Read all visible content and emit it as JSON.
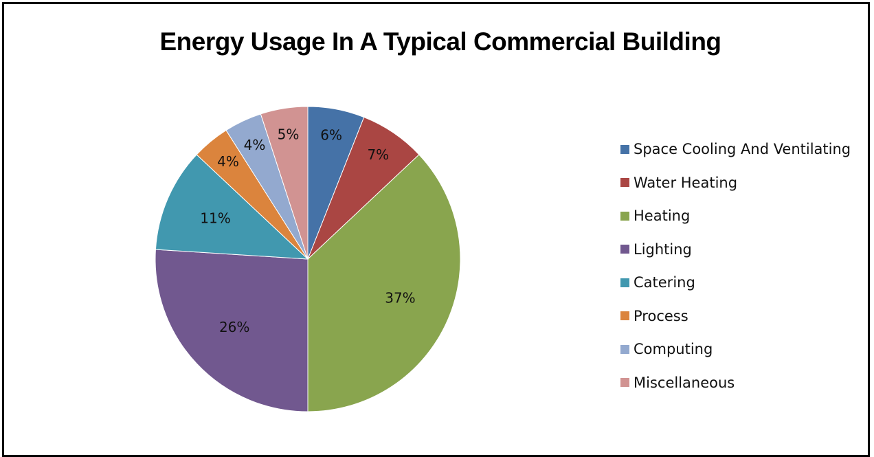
{
  "chart_data": {
    "type": "pie",
    "title": "Energy Usage In A Typical Commercial Building",
    "categories": [
      "Space Cooling And Ventilating",
      "Water Heating",
      "Heating",
      "Lighting",
      "Catering",
      "Process",
      "Computing",
      "Miscellaneous"
    ],
    "values": [
      6,
      7,
      37,
      26,
      11,
      4,
      4,
      5
    ],
    "labels": [
      "6%",
      "7%",
      "37%",
      "26%",
      "11%",
      "4%",
      "4%",
      "5%"
    ],
    "colors": [
      "#4572A7",
      "#AA4643",
      "#89A54E",
      "#71588F",
      "#4198AF",
      "#DB843D",
      "#93A9CF",
      "#D19392"
    ],
    "legend_position": "right",
    "start": "12 o'clock",
    "direction": "clockwise"
  }
}
